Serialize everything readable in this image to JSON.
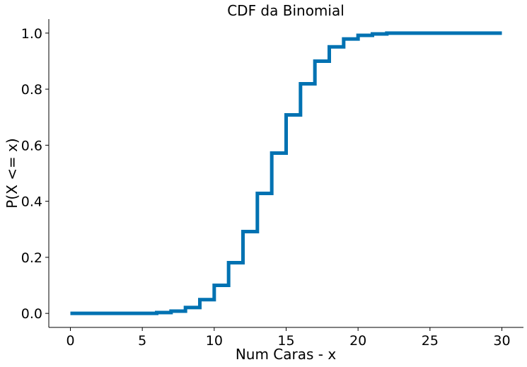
{
  "chart_data": {
    "type": "line",
    "drawstyle": "steps-post",
    "title": "CDF da Binomial",
    "xlabel": "Num Caras - x",
    "ylabel": "P(X <= x)",
    "xlim": [
      -1.5,
      31.5
    ],
    "ylim": [
      -0.05,
      1.05
    ],
    "xticks": [
      0,
      5,
      10,
      15,
      20,
      25,
      30
    ],
    "xtick_labels": [
      "0",
      "5",
      "10",
      "15",
      "20",
      "25",
      "30"
    ],
    "yticks": [
      0.0,
      0.2,
      0.4,
      0.6,
      0.8,
      1.0
    ],
    "ytick_labels": [
      "0.0",
      "0.2",
      "0.4",
      "0.6",
      "0.8",
      "1.0"
    ],
    "grid": false,
    "color": "#0072b2",
    "series": [
      {
        "x": [
          0,
          1,
          2,
          3,
          4,
          5,
          6,
          7,
          8,
          9,
          10,
          11,
          12,
          13,
          14,
          15,
          16,
          17,
          18,
          19,
          20,
          21,
          22,
          23,
          24,
          25,
          26,
          27,
          28,
          29,
          30
        ],
        "y": [
          0.0,
          0.0,
          0.0,
          0.0,
          0.0,
          0.0,
          0.003,
          0.008,
          0.021,
          0.049,
          0.1,
          0.181,
          0.292,
          0.428,
          0.572,
          0.708,
          0.819,
          0.9,
          0.951,
          0.979,
          0.992,
          0.997,
          1.0,
          1.0,
          1.0,
          1.0,
          1.0,
          1.0,
          1.0,
          1.0,
          1.0
        ]
      }
    ]
  }
}
